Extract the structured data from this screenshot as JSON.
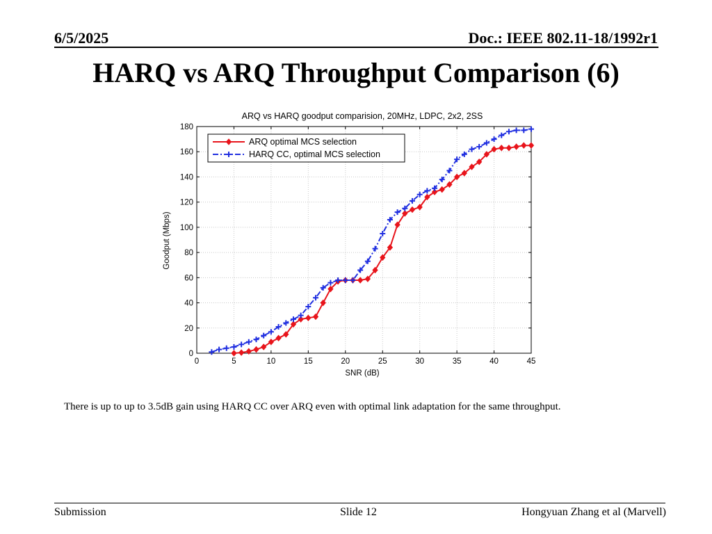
{
  "header": {
    "date": "6/5/2025",
    "doc": "Doc.: IEEE 802.11-18/1992r1"
  },
  "slide": {
    "title": "HARQ vs ARQ Throughput Comparison (6)",
    "note": "There is up to up to 3.5dB gain using HARQ CC over ARQ even with optimal link adaptation for the same throughput."
  },
  "footer": {
    "left": "Submission",
    "center": "Slide 12",
    "right": "Hongyuan Zhang et al (Marvell)"
  },
  "chart_data": {
    "type": "line",
    "title": "ARQ vs HARQ goodput comparision, 20MHz, LDPC, 2x2, 2SS",
    "xlabel": "SNR (dB)",
    "ylabel": "Goodput (Mbps)",
    "xlim": [
      0,
      45
    ],
    "ylim": [
      0,
      180
    ],
    "xticks": [
      0,
      5,
      10,
      15,
      20,
      25,
      30,
      35,
      40,
      45
    ],
    "yticks": [
      0,
      20,
      40,
      60,
      80,
      100,
      120,
      140,
      160,
      180
    ],
    "grid": true,
    "legend_position": "top-left",
    "series": [
      {
        "name": "ARQ optimal MCS selection",
        "color": "#e8141b",
        "marker": "diamond",
        "linestyle": "solid",
        "x": [
          5,
          6,
          7,
          8,
          9,
          10,
          11,
          12,
          13,
          14,
          15,
          16,
          17,
          18,
          19,
          20,
          21,
          22,
          23,
          24,
          25,
          26,
          27,
          28,
          29,
          30,
          31,
          32,
          33,
          34,
          35,
          36,
          37,
          38,
          39,
          40,
          41,
          42,
          43,
          44,
          45
        ],
        "y": [
          0,
          0.5,
          1.5,
          3,
          5,
          9,
          12,
          15,
          23,
          27,
          28,
          29,
          40,
          51,
          57,
          58,
          58,
          58,
          59,
          66,
          76,
          84,
          102,
          111,
          114,
          116,
          124,
          128,
          130,
          134,
          140,
          143,
          148,
          152,
          158,
          162,
          163,
          163,
          164,
          165,
          165
        ]
      },
      {
        "name": "HARQ CC, optimal MCS selection",
        "color": "#1f2ee0",
        "marker": "plus",
        "linestyle": "dashdot",
        "x": [
          2,
          3,
          4,
          5,
          6,
          7,
          8,
          9,
          10,
          11,
          12,
          13,
          14,
          15,
          16,
          17,
          18,
          19,
          20,
          21,
          22,
          23,
          24,
          25,
          26,
          27,
          28,
          29,
          30,
          31,
          32,
          33,
          34,
          35,
          36,
          37,
          38,
          39,
          40,
          41,
          42,
          43,
          44,
          45
        ],
        "y": [
          1,
          3,
          4,
          5,
          7,
          9,
          11,
          14,
          17,
          21,
          24,
          27,
          30,
          37,
          44,
          52,
          56,
          58,
          58,
          58,
          66,
          73,
          83,
          95,
          106,
          112,
          115,
          121,
          126,
          129,
          131,
          138,
          145,
          154,
          158,
          162,
          164,
          167,
          170,
          173,
          176,
          177,
          177,
          178
        ]
      }
    ]
  }
}
